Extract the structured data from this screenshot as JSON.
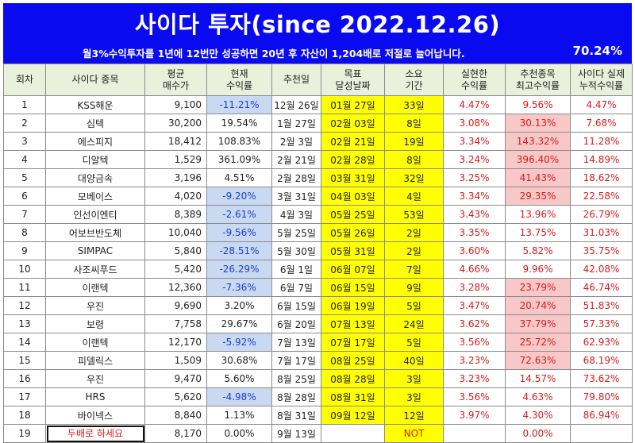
{
  "header": {
    "title": "사이다 투자(since 2022.12.26)",
    "subtitle": "월3%수익투자를 1년에 12번만 성공하면 20년 후 자산이 1,204배로 저절로 늘어납니다.",
    "total_return": "70.24%"
  },
  "columns": [
    {
      "line1": "회차",
      "line2": ""
    },
    {
      "line1": "사이다 종목",
      "line2": ""
    },
    {
      "line1": "평균",
      "line2": "매수가"
    },
    {
      "line1": "현재",
      "line2": "수익률"
    },
    {
      "line1": "추천일",
      "line2": ""
    },
    {
      "line1": "목표",
      "line2": "달성날짜"
    },
    {
      "line1": "소요",
      "line2": "기간"
    },
    {
      "line1": "실현한",
      "line2": "수익률"
    },
    {
      "line1": "추천종목",
      "line2": "최고수익률"
    },
    {
      "line1": "사이다 실제",
      "line2": "누적수익률"
    }
  ],
  "rows": [
    {
      "no": "1",
      "name": "KSS해운",
      "price": "9,100",
      "current": "-11.21%",
      "rec": "12월 26일",
      "target": "01월 27일",
      "period": "33일",
      "realized": "4.47%",
      "best": "9.56%",
      "cum": "4.47%",
      "cur_neg": true,
      "best_hl": false
    },
    {
      "no": "2",
      "name": "심텍",
      "price": "30,200",
      "current": "19.54%",
      "rec": "1월 27일",
      "target": "02월 03일",
      "period": "8일",
      "realized": "3.08%",
      "best": "30.13%",
      "cum": "7.68%",
      "cur_neg": false,
      "best_hl": true
    },
    {
      "no": "3",
      "name": "에스피지",
      "price": "18,412",
      "current": "108.83%",
      "rec": "2월 3일",
      "target": "02월 21일",
      "period": "19일",
      "realized": "3.34%",
      "best": "143.32%",
      "cum": "11.28%",
      "cur_neg": false,
      "best_hl": true
    },
    {
      "no": "4",
      "name": "디알텍",
      "price": "1,529",
      "current": "361.09%",
      "rec": "2월 21일",
      "target": "02월 28일",
      "period": "8일",
      "realized": "3.24%",
      "best": "396.40%",
      "cum": "14.89%",
      "cur_neg": false,
      "best_hl": true
    },
    {
      "no": "5",
      "name": "대양금속",
      "price": "3,196",
      "current": "4.51%",
      "rec": "2월 28일",
      "target": "03월 31일",
      "period": "32일",
      "realized": "3.25%",
      "best": "41.43%",
      "cum": "18.62%",
      "cur_neg": false,
      "best_hl": true
    },
    {
      "no": "6",
      "name": "모베이스",
      "price": "4,020",
      "current": "-9.20%",
      "rec": "3월 31일",
      "target": "04월 03일",
      "period": "4일",
      "realized": "3.34%",
      "best": "29.35%",
      "cum": "22.58%",
      "cur_neg": true,
      "best_hl": true
    },
    {
      "no": "7",
      "name": "인선이엔티",
      "price": "8,389",
      "current": "-2.61%",
      "rec": "4월 3일",
      "target": "05월 25일",
      "period": "53일",
      "realized": "3.43%",
      "best": "13.96%",
      "cum": "26.79%",
      "cur_neg": true,
      "best_hl": false
    },
    {
      "no": "8",
      "name": "어보브반도체",
      "price": "10,040",
      "current": "-9.56%",
      "rec": "5월 25일",
      "target": "05월 26일",
      "period": "2일",
      "realized": "3.35%",
      "best": "13.75%",
      "cum": "31.03%",
      "cur_neg": true,
      "best_hl": false
    },
    {
      "no": "9",
      "name": "SIMPAC",
      "price": "5,840",
      "current": "-28.51%",
      "rec": "5월 30일",
      "target": "05월 31일",
      "period": "2일",
      "realized": "3.60%",
      "best": "5.82%",
      "cum": "35.75%",
      "cur_neg": true,
      "best_hl": false
    },
    {
      "no": "10",
      "name": "사조씨푸드",
      "price": "5,420",
      "current": "-26.29%",
      "rec": "6월 1일",
      "target": "06월 07일",
      "period": "7일",
      "realized": "4.66%",
      "best": "9.96%",
      "cum": "42.08%",
      "cur_neg": true,
      "best_hl": false
    },
    {
      "no": "11",
      "name": "이랜텍",
      "price": "12,360",
      "current": "-7.36%",
      "rec": "6월 7일",
      "target": "06월 15일",
      "period": "9일",
      "realized": "3.28%",
      "best": "23.79%",
      "cum": "46.74%",
      "cur_neg": true,
      "best_hl": true
    },
    {
      "no": "12",
      "name": "우진",
      "price": "9,690",
      "current": "3.20%",
      "rec": "6월 15일",
      "target": "06월 19일",
      "period": "5일",
      "realized": "3.47%",
      "best": "20.74%",
      "cum": "51.83%",
      "cur_neg": false,
      "best_hl": true
    },
    {
      "no": "13",
      "name": "보령",
      "price": "7,758",
      "current": "29.67%",
      "rec": "6월 20일",
      "target": "07월 13일",
      "period": "24일",
      "realized": "3.62%",
      "best": "37.79%",
      "cum": "57.33%",
      "cur_neg": false,
      "best_hl": true
    },
    {
      "no": "14",
      "name": "이랜텍",
      "price": "12,170",
      "current": "-5.92%",
      "rec": "7월 13일",
      "target": "07월 17일",
      "period": "5일",
      "realized": "3.56%",
      "best": "25.72%",
      "cum": "62.93%",
      "cur_neg": true,
      "best_hl": true
    },
    {
      "no": "15",
      "name": "피델릭스",
      "price": "1,509",
      "current": "30.68%",
      "rec": "7월 17일",
      "target": "08월 25일",
      "period": "40일",
      "realized": "3.23%",
      "best": "72.63%",
      "cum": "68.19%",
      "cur_neg": false,
      "best_hl": true
    },
    {
      "no": "16",
      "name": "우진",
      "price": "9,470",
      "current": "5.60%",
      "rec": "8월 25일",
      "target": "08월 28일",
      "period": "3일",
      "realized": "3.23%",
      "best": "14.57%",
      "cum": "73.62%",
      "cur_neg": false,
      "best_hl": false
    },
    {
      "no": "17",
      "name": "HRS",
      "price": "5,620",
      "current": "-4.98%",
      "rec": "8월 28일",
      "target": "08월 31일",
      "period": "3일",
      "realized": "3.56%",
      "best": "4.63%",
      "cum": "79.80%",
      "cur_neg": true,
      "best_hl": false
    },
    {
      "no": "18",
      "name": "바이넥스",
      "price": "8,840",
      "current": "1.13%",
      "rec": "8월 31일",
      "target": "09월 12일",
      "period": "12일",
      "realized": "3.97%",
      "best": "4.30%",
      "cum": "86.94%",
      "cur_neg": false,
      "best_hl": false
    },
    {
      "no": "19",
      "name": "두배로 하세요",
      "price": "8,170",
      "current": "0.00%",
      "rec": "9월 13일",
      "target": "",
      "period": "NOT",
      "realized": "",
      "best": "0.00%",
      "cum": "",
      "cur_neg": false,
      "best_hl": false,
      "name_boxed": true
    }
  ],
  "colors": {
    "title_bg": "#0a0af0",
    "header_bg": "#e9f0dc",
    "negative_bg": "#c9d9f2",
    "target_bg": "#ffff00",
    "best_bg": "#f8c8c8",
    "red_text": "#d81b1b",
    "blue_text": "#1a3fd6"
  }
}
